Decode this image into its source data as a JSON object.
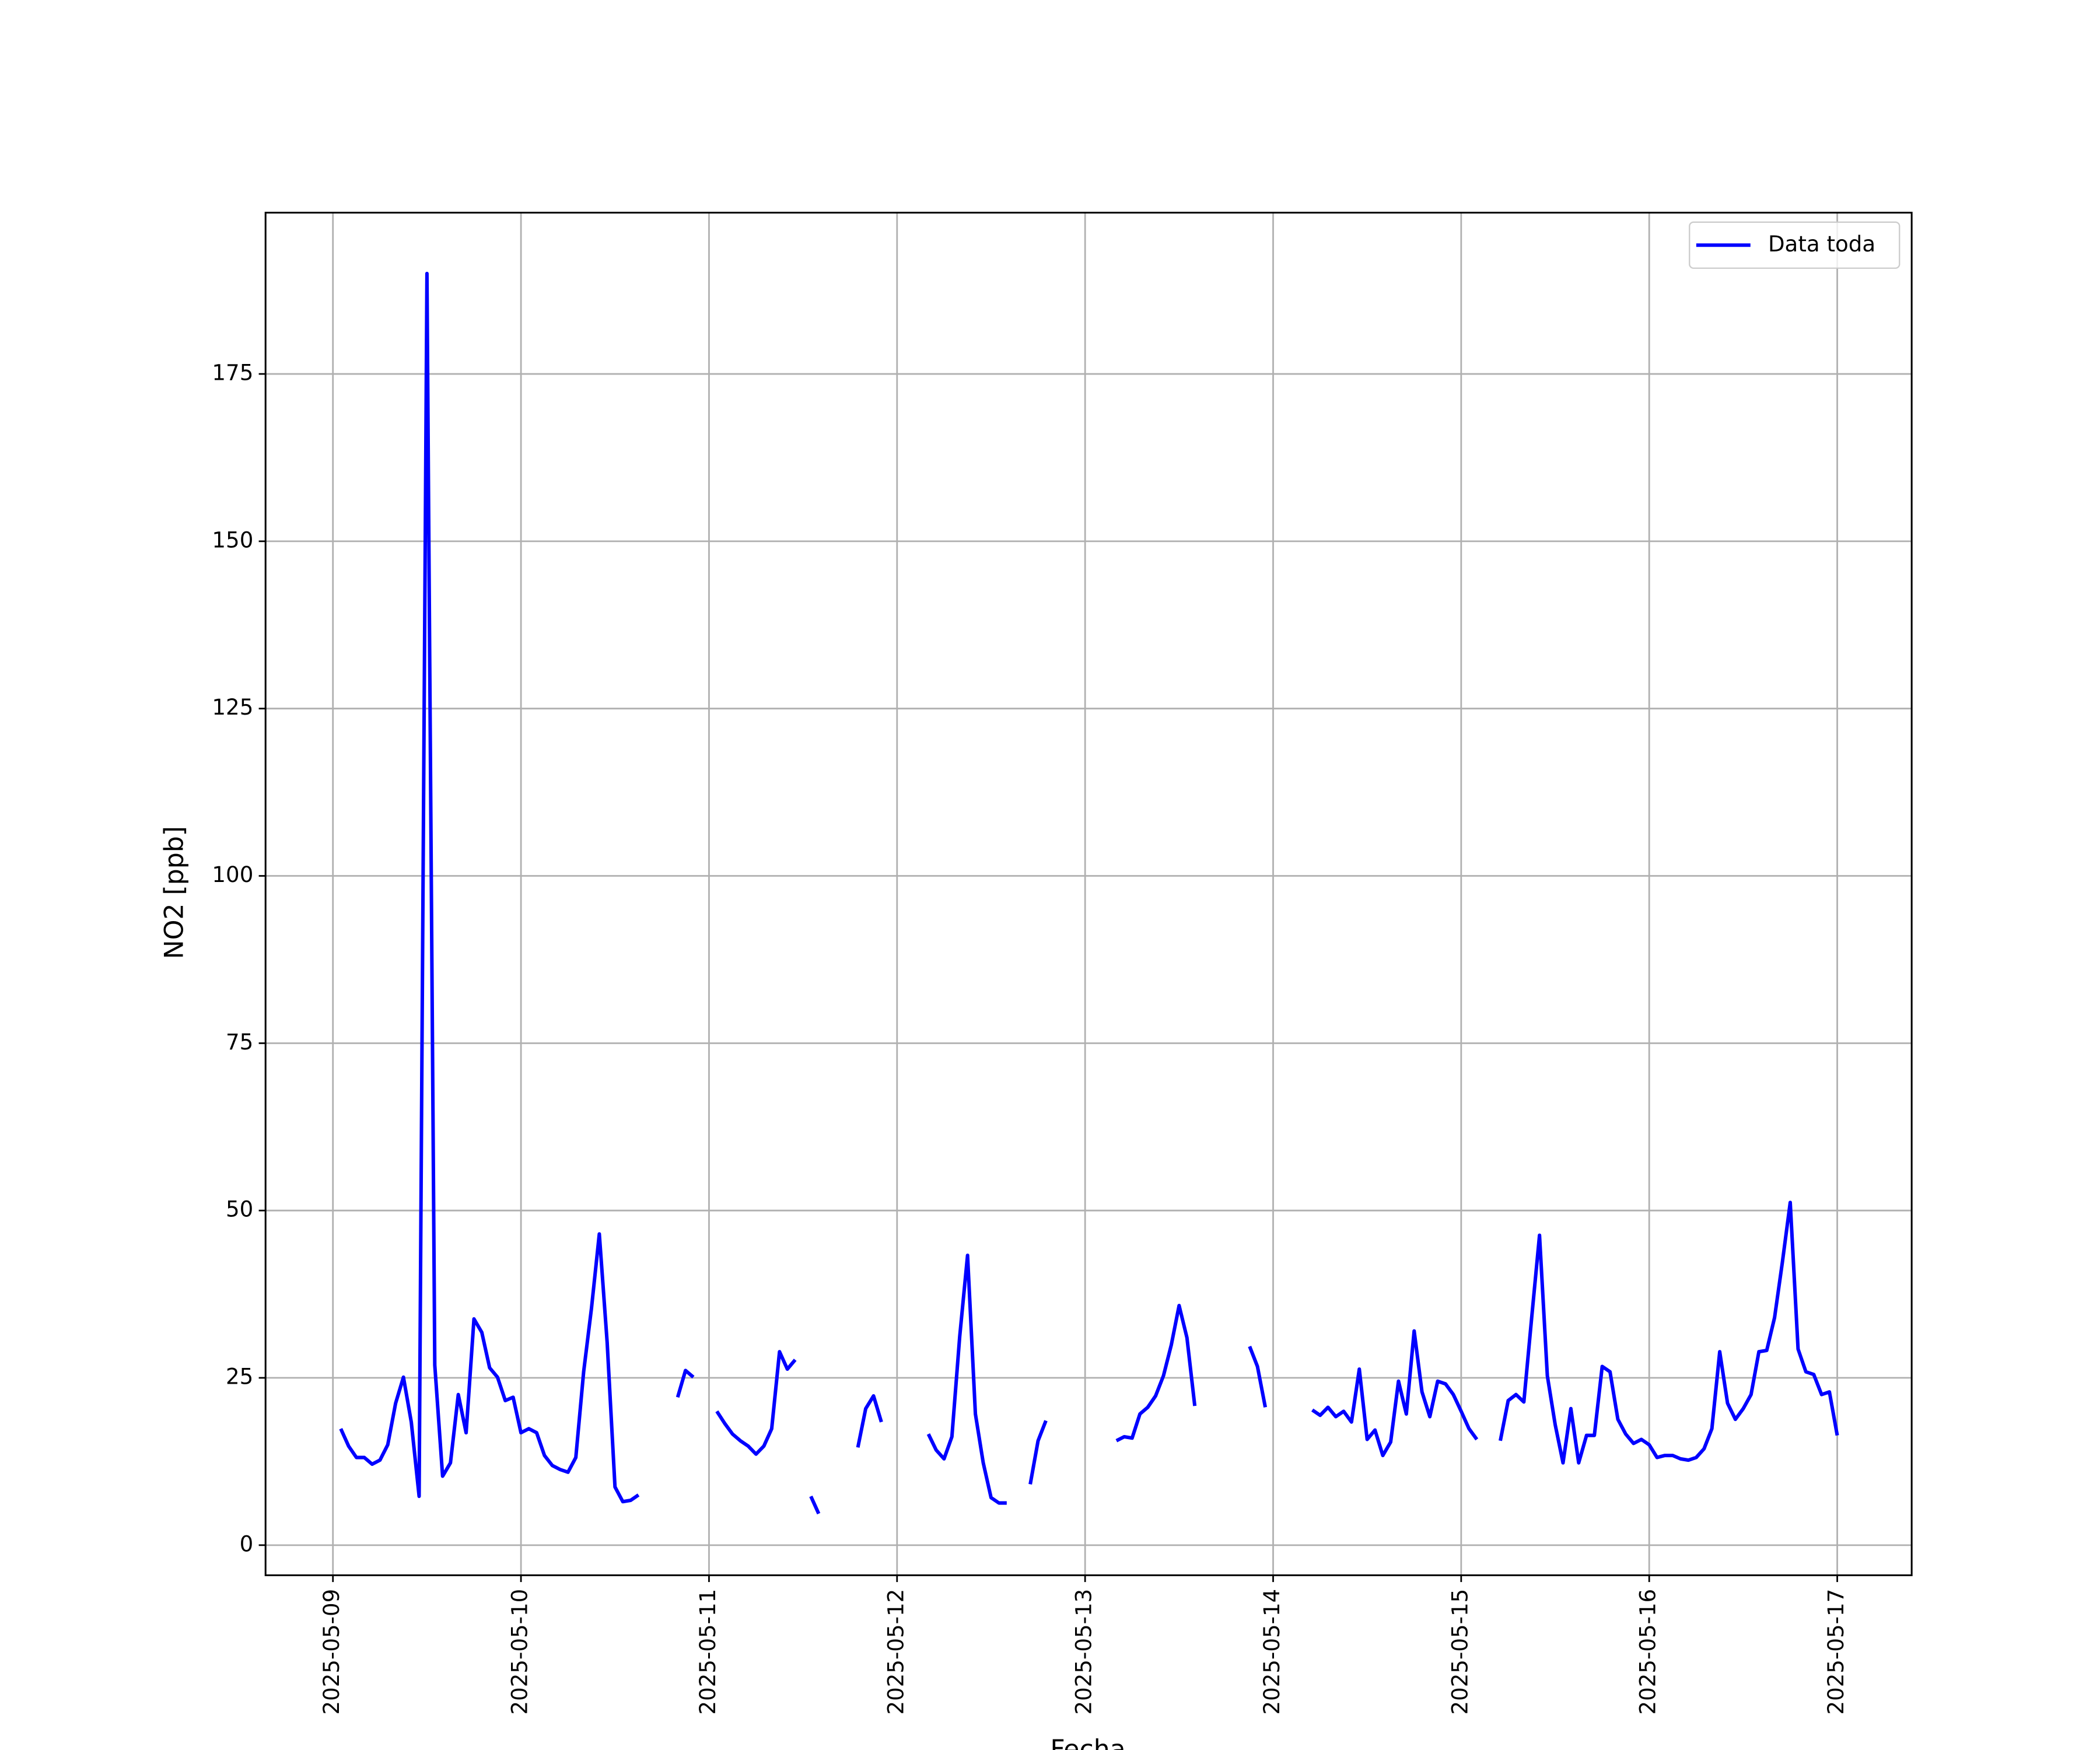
{
  "chart_data": {
    "type": "line",
    "xlabel": "Fecha",
    "ylabel": "NO2 [ppb]",
    "xlim": [
      -8.6,
      201.5
    ],
    "ylim": [
      -4.5,
      199.1
    ],
    "xticks": [
      {
        "value": 0,
        "label": "2025-05-09"
      },
      {
        "value": 24,
        "label": "2025-05-10"
      },
      {
        "value": 48,
        "label": "2025-05-11"
      },
      {
        "value": 72,
        "label": "2025-05-12"
      },
      {
        "value": 96,
        "label": "2025-05-13"
      },
      {
        "value": 120,
        "label": "2025-05-14"
      },
      {
        "value": 144,
        "label": "2025-05-15"
      },
      {
        "value": 168,
        "label": "2025-05-16"
      },
      {
        "value": 192,
        "label": "2025-05-17"
      }
    ],
    "yticks": [
      0,
      25,
      50,
      75,
      100,
      125,
      150,
      175
    ],
    "grid": true,
    "legend": "upper right",
    "x": [
      1,
      2,
      3,
      4,
      5,
      6,
      7,
      8,
      9,
      10,
      11,
      12,
      13,
      14,
      15,
      16,
      17,
      18,
      19,
      20,
      21,
      22,
      23,
      24,
      25,
      26,
      27,
      28,
      29,
      30,
      31,
      32,
      33,
      34,
      35,
      36,
      37,
      38,
      39,
      40,
      44,
      45,
      46,
      47,
      49,
      50,
      51,
      52,
      53,
      54,
      55,
      56,
      57,
      58,
      59,
      60,
      61,
      62,
      63,
      67,
      68,
      69,
      70,
      71,
      76,
      77,
      78,
      79,
      80,
      81,
      82,
      83,
      84,
      85,
      86,
      87,
      89,
      90,
      91,
      92,
      100,
      101,
      102,
      103,
      104,
      105,
      106,
      107,
      108,
      109,
      110,
      111,
      117,
      118,
      119,
      120,
      125,
      126,
      127,
      128,
      129,
      130,
      131,
      132,
      133,
      134,
      135,
      136,
      137,
      138,
      139,
      140,
      141,
      142,
      143,
      144,
      145,
      146,
      147,
      149,
      150,
      151,
      152,
      153,
      154,
      155,
      156,
      157,
      158,
      159,
      160,
      161,
      162,
      163,
      164,
      165,
      166,
      167,
      168,
      169,
      170,
      171,
      172,
      173,
      174,
      175,
      176,
      177,
      178,
      179,
      180,
      181,
      182,
      183,
      184,
      185,
      186,
      187,
      188,
      189,
      190,
      191,
      192
    ],
    "series": [
      {
        "name": "Data toda",
        "color": "#0000ff",
        "values": [
          17.4,
          14.8,
          13.1,
          13.1,
          12.1,
          12.7,
          15,
          21.2,
          25.1,
          18.4,
          7.3,
          190,
          26.9,
          10.3,
          12.3,
          22.5,
          16.8,
          33.8,
          31.8,
          26.5,
          25.1,
          21.6,
          22.1,
          16.8,
          17.4,
          16.8,
          13.4,
          11.9,
          11.3,
          10.9,
          13.1,
          25.9,
          35.4,
          46.5,
          30.3,
          8.7,
          6.5,
          6.7,
          7.5,
          null,
          22.1,
          26.1,
          25.1,
          null,
          20,
          18.2,
          16.6,
          15.6,
          14.8,
          13.6,
          14.8,
          17.4,
          28.9,
          26.3,
          27.7,
          null,
          7.3,
          4.7,
          null,
          14.6,
          20.4,
          22.3,
          18.4,
          null,
          16.6,
          14.2,
          12.9,
          16.2,
          31.2,
          43.3,
          19.6,
          12.3,
          7.1,
          6.3,
          6.3,
          null,
          9.1,
          15.6,
          18.6,
          null,
          15.6,
          16.2,
          16,
          19.6,
          20.6,
          22.3,
          25.3,
          29.9,
          35.8,
          31,
          20.8,
          null,
          29.7,
          26.7,
          20.6,
          null,
          20.2,
          19.4,
          20.6,
          19.2,
          20,
          18.4,
          26.3,
          15.8,
          17.2,
          13.4,
          15.4,
          24.5,
          19.6,
          32,
          22.9,
          19.2,
          24.5,
          24.1,
          22.5,
          20,
          17.4,
          15.8,
          null,
          15.6,
          21.6,
          22.5,
          21.4,
          34,
          46.3,
          25.3,
          18,
          12.3,
          20.4,
          12.3,
          16.4,
          16.4,
          26.7,
          25.9,
          18.8,
          16.6,
          15.2,
          15.8,
          15,
          13.1,
          13.4,
          13.4,
          12.9,
          12.7,
          13.1,
          14.4,
          17.4,
          28.9,
          21.2,
          18.8,
          20.4,
          22.5,
          28.9,
          29.1,
          34,
          42.3,
          51.2,
          29.3,
          25.9,
          25.5,
          22.5,
          22.9,
          16.4
        ]
      }
    ]
  }
}
